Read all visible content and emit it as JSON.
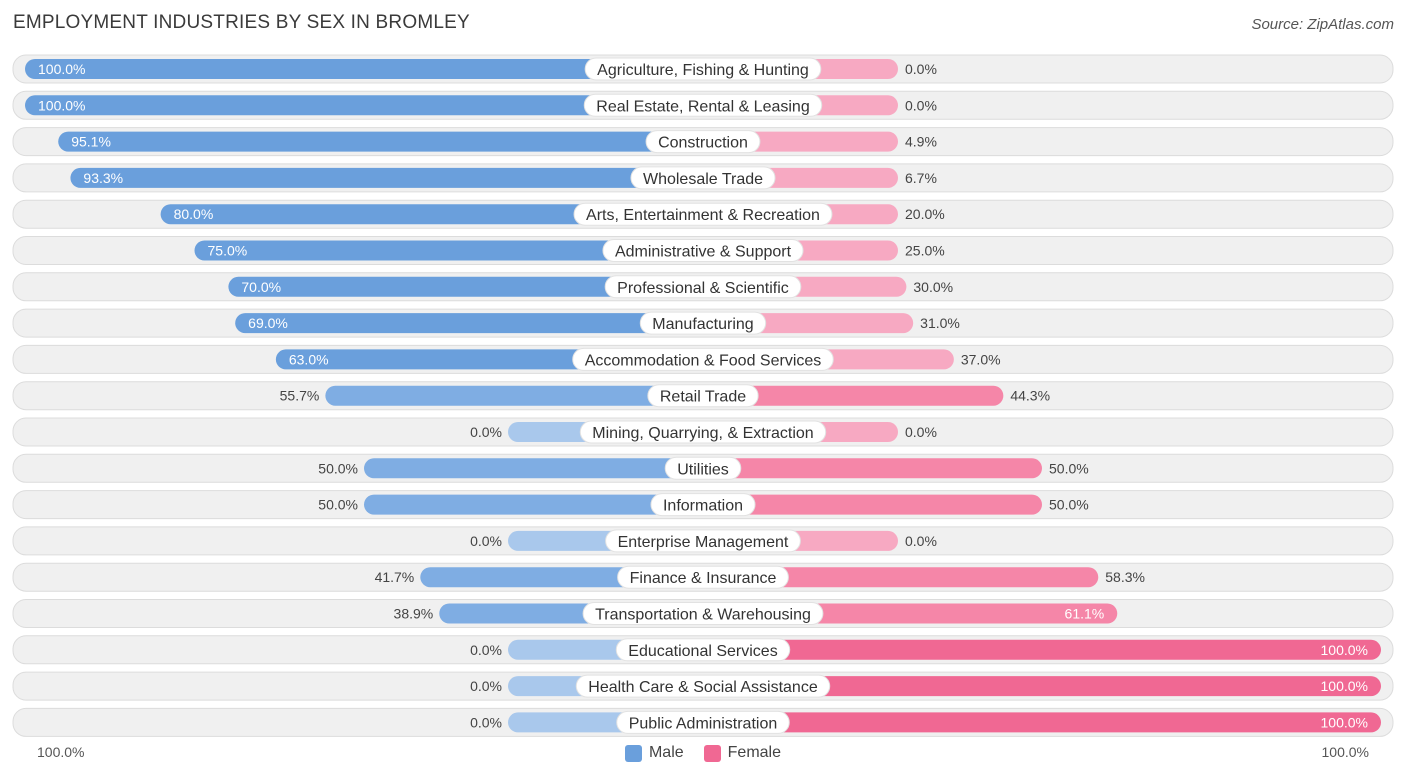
{
  "title": "EMPLOYMENT INDUSTRIES BY SEX IN BROMLEY",
  "source": "Source: ZipAtlas.com",
  "colors": {
    "male_strong": "#6a9fdc",
    "male_light": "#a9c8ec",
    "female_strong": "#f06893",
    "female_light": "#f7a9c2",
    "row_bg": "#f0f0f0",
    "row_border": "#dcdcdc"
  },
  "legend": {
    "male": "Male",
    "female": "Female"
  },
  "axis": {
    "left_label": "100.0%",
    "right_label": "100.0%"
  },
  "chart_data": {
    "type": "bar",
    "orientation": "horizontal-diverging",
    "title": "EMPLOYMENT INDUSTRIES BY SEX IN BROMLEY",
    "categories": [
      "Agriculture, Fishing & Hunting",
      "Real Estate, Rental & Leasing",
      "Construction",
      "Wholesale Trade",
      "Arts, Entertainment & Recreation",
      "Administrative & Support",
      "Professional & Scientific",
      "Manufacturing",
      "Accommodation & Food Services",
      "Retail Trade",
      "Mining, Quarrying, & Extraction",
      "Utilities",
      "Information",
      "Enterprise Management",
      "Finance & Insurance",
      "Transportation & Warehousing",
      "Educational Services",
      "Health Care & Social Assistance",
      "Public Administration"
    ],
    "series": [
      {
        "name": "Male",
        "values": [
          100.0,
          100.0,
          95.1,
          93.3,
          80.0,
          75.0,
          70.0,
          69.0,
          63.0,
          55.7,
          0.0,
          50.0,
          50.0,
          0.0,
          41.7,
          38.9,
          0.0,
          0.0,
          0.0
        ],
        "labels": [
          "100.0%",
          "100.0%",
          "95.1%",
          "93.3%",
          "80.0%",
          "75.0%",
          "70.0%",
          "69.0%",
          "63.0%",
          "55.7%",
          "0.0%",
          "50.0%",
          "50.0%",
          "0.0%",
          "41.7%",
          "38.9%",
          "0.0%",
          "0.0%",
          "0.0%"
        ]
      },
      {
        "name": "Female",
        "values": [
          0.0,
          0.0,
          4.9,
          6.7,
          20.0,
          25.0,
          30.0,
          31.0,
          37.0,
          44.3,
          0.0,
          50.0,
          50.0,
          0.0,
          58.3,
          61.1,
          100.0,
          100.0,
          100.0
        ],
        "labels": [
          "0.0%",
          "0.0%",
          "4.9%",
          "6.7%",
          "20.0%",
          "25.0%",
          "30.0%",
          "31.0%",
          "37.0%",
          "44.3%",
          "0.0%",
          "50.0%",
          "50.0%",
          "0.0%",
          "58.3%",
          "61.1%",
          "100.0%",
          "100.0%",
          "100.0%"
        ]
      }
    ],
    "xlim": [
      -100,
      100
    ],
    "legend_position": "bottom-center",
    "grid": false
  }
}
